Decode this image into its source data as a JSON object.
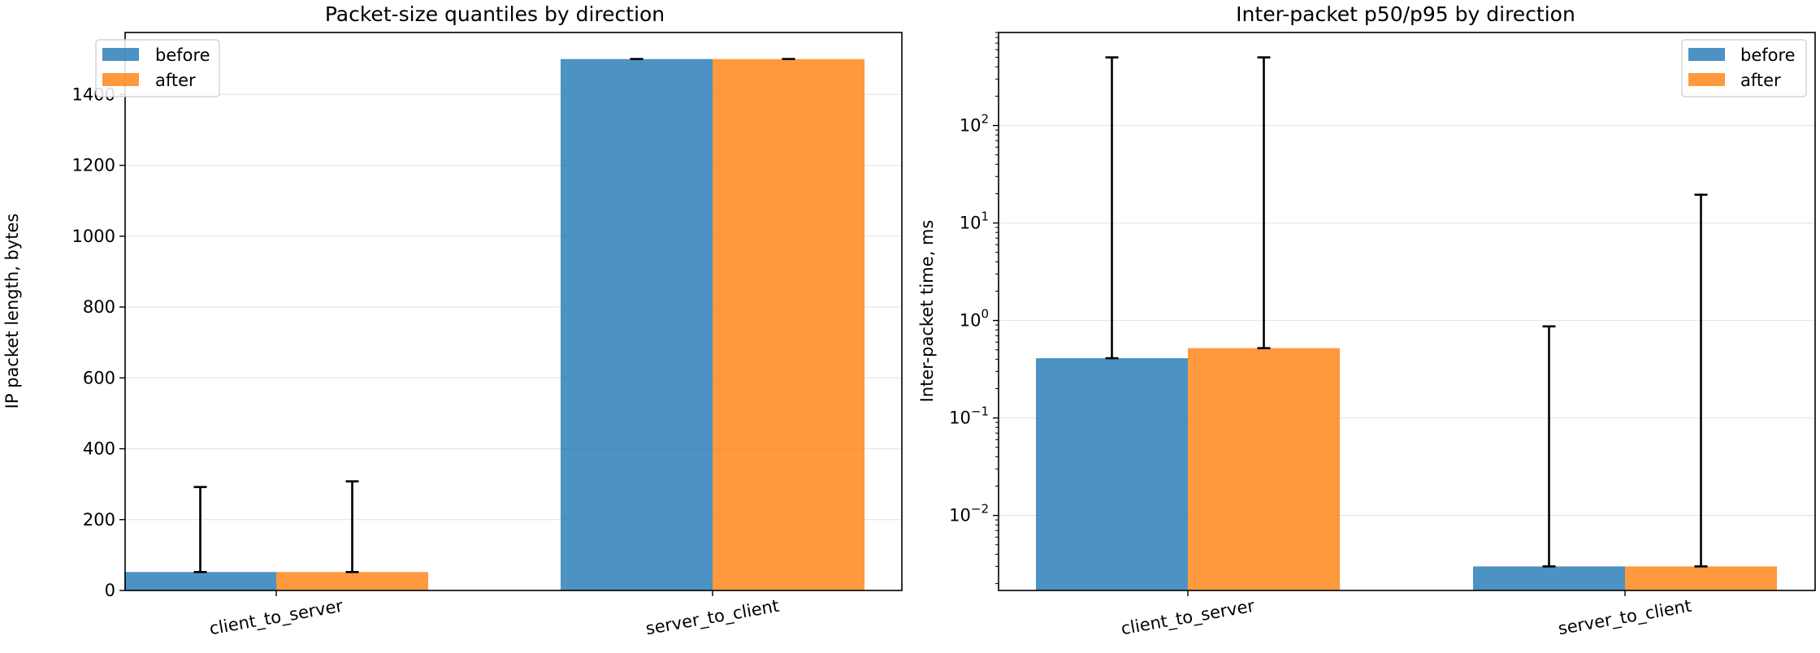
{
  "chart_data": [
    {
      "type": "bar",
      "title": "Packet-size quantiles by direction",
      "xlabel": "",
      "ylabel": "IP packet length, bytes",
      "categories": [
        "client_to_server",
        "server_to_client"
      ],
      "series": [
        {
          "name": "before",
          "values": [
            52,
            1500
          ],
          "err_upper": [
            292,
            1500
          ],
          "color": "#1f77b4"
        },
        {
          "name": "after",
          "values": [
            52,
            1500
          ],
          "err_upper": [
            308,
            1500
          ],
          "color": "#ff7f0e"
        }
      ],
      "ylim": [
        0,
        1575
      ],
      "yticks": [
        0,
        200,
        400,
        600,
        800,
        1000,
        1200,
        1400
      ],
      "yscale": "linear",
      "grid": "y",
      "legend": "upper left"
    },
    {
      "type": "bar",
      "title": "Inter-packet p50/p95 by direction",
      "xlabel": "",
      "ylabel": "Inter-packet time, ms",
      "categories": [
        "client_to_server",
        "server_to_client"
      ],
      "series": [
        {
          "name": "before",
          "values": [
            0.41,
            0.003
          ],
          "err_upper": [
            500,
            0.87
          ],
          "color": "#1f77b4"
        },
        {
          "name": "after",
          "values": [
            0.52,
            0.003
          ],
          "err_upper": [
            500,
            19.5
          ],
          "color": "#ff7f0e"
        }
      ],
      "ylim": [
        0.0017,
        900
      ],
      "yticks": [
        0.01,
        0.1,
        1,
        10,
        100
      ],
      "ytick_labels": [
        [
          "10",
          "−2"
        ],
        [
          "10",
          "−1"
        ],
        [
          "10",
          "0"
        ],
        [
          "10",
          "1"
        ],
        [
          "10",
          "2"
        ]
      ],
      "yscale": "log",
      "grid": "y",
      "legend": "upper right"
    }
  ]
}
